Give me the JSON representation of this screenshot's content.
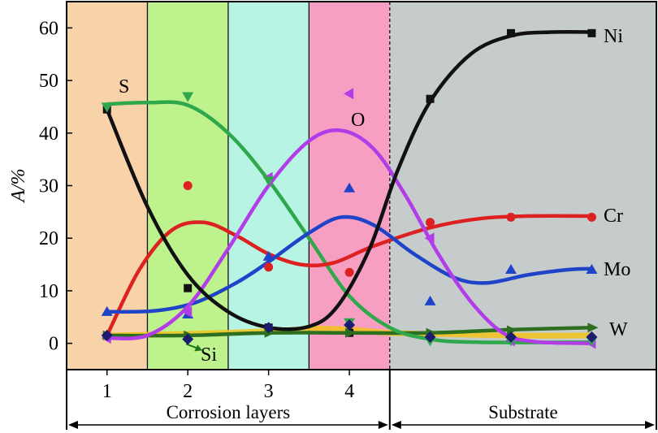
{
  "chart_data": {
    "type": "line",
    "ylabel": "A/%",
    "ylim": [
      -5,
      65
    ],
    "xlim": [
      0.5,
      7.8
    ],
    "x_ticks": [
      1,
      2,
      3,
      4
    ],
    "y_ticks": [
      0,
      10,
      20,
      30,
      40,
      50,
      60
    ],
    "grid": false,
    "regions": [
      {
        "from": 0.5,
        "to": 1.5,
        "color": "#f8d2a8"
      },
      {
        "from": 1.5,
        "to": 2.5,
        "color": "#bdf28c"
      },
      {
        "from": 2.5,
        "to": 3.5,
        "color": "#b8f4e4"
      },
      {
        "from": 3.5,
        "to": 4.5,
        "color": "#f79fc2"
      },
      {
        "from": 4.5,
        "to": 7.8,
        "color": "#c6cccb"
      }
    ],
    "x_regions": [
      {
        "label": "Corrosion layers",
        "from": 0.5,
        "to": 4.5
      },
      {
        "label": "Substrate",
        "from": 4.5,
        "to": 7.8
      }
    ],
    "series": [
      {
        "name": "Ni",
        "color": "#111111",
        "marker": "square",
        "points": [
          [
            1,
            44.5
          ],
          [
            2,
            10.5
          ],
          [
            3,
            3
          ],
          [
            4,
            2
          ],
          [
            5,
            46.5
          ],
          [
            6,
            59
          ],
          [
            7,
            59
          ]
        ],
        "curve": [
          [
            1,
            44.5
          ],
          [
            1.5,
            26
          ],
          [
            2,
            13
          ],
          [
            2.5,
            6
          ],
          [
            3,
            3
          ],
          [
            3.5,
            3.2
          ],
          [
            3.85,
            7
          ],
          [
            4.25,
            18
          ],
          [
            4.6,
            33
          ],
          [
            5,
            46
          ],
          [
            5.5,
            55
          ],
          [
            6,
            58.5
          ],
          [
            6.5,
            59.2
          ],
          [
            7,
            59.2
          ]
        ]
      },
      {
        "name": "Cr",
        "color": "#dd2020",
        "marker": "circle",
        "points": [
          [
            1,
            1.5
          ],
          [
            2,
            30
          ],
          [
            3,
            14.5
          ],
          [
            4,
            13.5
          ],
          [
            5,
            23
          ],
          [
            6,
            24
          ],
          [
            7,
            24
          ]
        ],
        "curve": [
          [
            1,
            1.5
          ],
          [
            1.4,
            14
          ],
          [
            1.8,
            21.5
          ],
          [
            2.2,
            23
          ],
          [
            2.6,
            20.5
          ],
          [
            3,
            17
          ],
          [
            3.4,
            15
          ],
          [
            3.8,
            15.3
          ],
          [
            4.3,
            18.5
          ],
          [
            5,
            22
          ],
          [
            5.6,
            23.7
          ],
          [
            6.2,
            24.2
          ],
          [
            7,
            24.2
          ]
        ]
      },
      {
        "name": "Mo",
        "color": "#1f44c8",
        "marker": "triangle-up",
        "points": [
          [
            1,
            6
          ],
          [
            2,
            5.5
          ],
          [
            3,
            16.5
          ],
          [
            4,
            29.5
          ],
          [
            5,
            8
          ],
          [
            6,
            14
          ],
          [
            7,
            14
          ]
        ],
        "curve": [
          [
            1,
            6
          ],
          [
            1.6,
            6.2
          ],
          [
            2.1,
            7.8
          ],
          [
            2.6,
            11.5
          ],
          [
            3,
            15.5
          ],
          [
            3.5,
            21
          ],
          [
            3.9,
            24
          ],
          [
            4.3,
            22.5
          ],
          [
            4.8,
            17
          ],
          [
            5.3,
            12.5
          ],
          [
            5.7,
            11.5
          ],
          [
            6.2,
            13
          ],
          [
            6.7,
            14
          ],
          [
            7,
            14.2
          ]
        ]
      },
      {
        "name": "O",
        "color": "#b23ce8",
        "marker": "triangle-left",
        "points": [
          [
            1,
            1
          ],
          [
            2,
            6
          ],
          [
            3,
            31.5
          ],
          [
            4,
            47.5
          ],
          [
            5,
            20
          ],
          [
            6,
            0.5
          ],
          [
            7,
            0
          ]
        ],
        "curve": [
          [
            1,
            1
          ],
          [
            1.5,
            1.5
          ],
          [
            2,
            7
          ],
          [
            2.5,
            18
          ],
          [
            3,
            30
          ],
          [
            3.5,
            38.5
          ],
          [
            3.9,
            40.5
          ],
          [
            4.3,
            37
          ],
          [
            4.7,
            28
          ],
          [
            5.1,
            17
          ],
          [
            5.5,
            8
          ],
          [
            5.9,
            2
          ],
          [
            6.3,
            0.3
          ],
          [
            7,
            0
          ]
        ]
      },
      {
        "name": "S",
        "color": "#2ea84a",
        "marker": "triangle-down",
        "points": [
          [
            1,
            45
          ],
          [
            2,
            47
          ],
          [
            3,
            31
          ],
          [
            4,
            4
          ],
          [
            5,
            0.5
          ],
          [
            6,
            0.5
          ],
          [
            7,
            0.5
          ]
        ],
        "curve": [
          [
            1,
            45.5
          ],
          [
            1.5,
            45.8
          ],
          [
            2,
            45.3
          ],
          [
            2.5,
            40
          ],
          [
            3,
            31
          ],
          [
            3.5,
            20
          ],
          [
            4,
            9
          ],
          [
            4.5,
            3
          ],
          [
            5,
            0.8
          ],
          [
            5.6,
            0.2
          ],
          [
            7,
            0.2
          ]
        ]
      },
      {
        "name": "W",
        "color": "#2d6e20",
        "marker": "arrow-right",
        "points": [
          [
            1,
            1.5
          ],
          [
            2,
            1.5
          ],
          [
            3,
            2
          ],
          [
            4,
            2
          ],
          [
            5,
            2
          ],
          [
            6,
            2.5
          ],
          [
            7,
            3
          ]
        ],
        "curve": [
          [
            1,
            1.5
          ],
          [
            2,
            1.5
          ],
          [
            3,
            2
          ],
          [
            4,
            2
          ],
          [
            5,
            2
          ],
          [
            6,
            2.6
          ],
          [
            7,
            3
          ]
        ]
      },
      {
        "name": "Si",
        "color": "#1a7a1a",
        "marker": "arrow-down-right",
        "points": [
          [
            2,
            0.5
          ]
        ],
        "curve": []
      },
      {
        "name": "",
        "color": "#1c1c6e",
        "marker": "diamond",
        "points": [
          [
            1,
            1.5
          ],
          [
            2,
            0.8
          ],
          [
            3,
            3
          ],
          [
            4,
            3.5
          ],
          [
            5,
            1.2
          ],
          [
            6,
            1.2
          ],
          [
            7,
            1.2
          ]
        ],
        "curve": []
      },
      {
        "name": "",
        "color": "#f2c21a",
        "marker": "none",
        "points": [],
        "curve": [
          [
            1,
            1.5
          ],
          [
            2,
            1.8
          ],
          [
            3,
            2.3
          ],
          [
            3.6,
            2.8
          ],
          [
            4,
            2.6
          ],
          [
            4.5,
            2
          ],
          [
            5,
            1.8
          ],
          [
            6,
            1.5
          ],
          [
            7,
            1.5
          ]
        ]
      }
    ]
  }
}
